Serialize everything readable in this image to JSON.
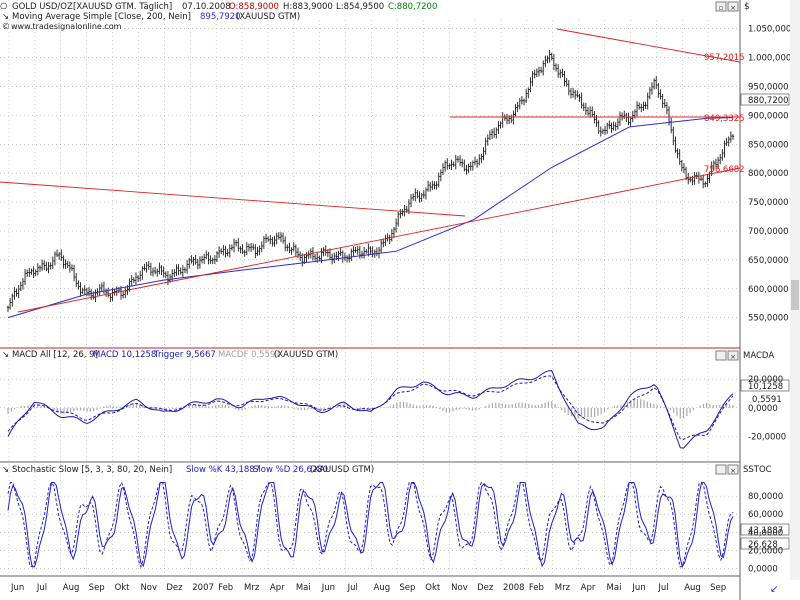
{
  "app": {
    "watermark": "www.tradesignalonline.com",
    "currency_symbol": "$"
  },
  "header": {
    "symbol_title": "GOLD USD/OZ",
    "instrument": "[XAUUSD GTM. Täglich]",
    "date": "07.10.2008",
    "open_label": "O:858,9000",
    "high_label": "H:883,9000",
    "low_label": "L:854,9500",
    "close_label": "C:880,7200",
    "ma_line": "Moving Average Simple [Close, 200, Nein]",
    "ma_value": "895,7920",
    "ma_suffix": "(XAUUSD GTM)"
  },
  "macd_header": {
    "name": "MACD All [12, 26, 9]",
    "macd_label": "MACD 10,1258",
    "trigger_label": "Trigger 9,5667",
    "macdf_label": "MACDF 0,5591",
    "suffix": "(XAUUSD GTM)",
    "axis_tag": "MACDA"
  },
  "stoch_header": {
    "name": "Stochastic Slow [5, 3, 3, 80, 20, Nein]",
    "k_label": "Slow %K 43,1887",
    "d_label": "Slow %D 26,6280",
    "suffix": "(XAUUSD GTM)",
    "axis_tag": "SSTOC"
  },
  "colors": {
    "price_bars": "#1a1a1a",
    "moving_average": "#2a2ad8",
    "trendline": "#e02020",
    "macd": "#1a1aa8",
    "histogram": "#a8a8a8",
    "stochastic": "#2020c8",
    "grid": "#a0a0a0"
  },
  "chart_data": [
    {
      "type": "line",
      "title": "GOLD USD/OZ",
      "ylim": [
        520,
        1065
      ],
      "y_ticks": [
        "1.050,0000",
        "1.000,0000",
        "950,0000",
        "900,0000",
        "850,0000",
        "800,0000",
        "750,0000",
        "700,0000",
        "650,0000",
        "600,0000",
        "550,0000"
      ],
      "last_value_label": "880,7200",
      "line_labels": [
        "957,2015",
        "849,3325",
        "756,6682"
      ],
      "series": [
        {
          "name": "XAUUSD GTM",
          "x": [
            "2006-06",
            "2006-07",
            "2006-08",
            "2006-09",
            "2006-10",
            "2006-11",
            "2006-12",
            "2007-01",
            "2007-02",
            "2007-03",
            "2007-04",
            "2007-05",
            "2007-06",
            "2007-07",
            "2007-08",
            "2007-09",
            "2007-10",
            "2007-11",
            "2007-12",
            "2008-01",
            "2008-02",
            "2008-03",
            "2008-04",
            "2008-05",
            "2008-06",
            "2008-07",
            "2008-08",
            "2008-09",
            "2008-10"
          ],
          "values": [
            565,
            640,
            650,
            598,
            585,
            625,
            630,
            635,
            665,
            665,
            685,
            670,
            650,
            665,
            655,
            715,
            770,
            810,
            820,
            880,
            940,
            1005,
            920,
            880,
            890,
            960,
            810,
            780,
            880
          ]
        },
        {
          "name": "Moving Average Simple [Close, 200, Nein]",
          "x": [
            "2006-06",
            "2006-09",
            "2006-12",
            "2007-03",
            "2007-06",
            "2007-09",
            "2007-12",
            "2008-03",
            "2008-06",
            "2008-09",
            "2008-10"
          ],
          "values": [
            550,
            590,
            615,
            632,
            648,
            665,
            720,
            810,
            880,
            895,
            896
          ]
        }
      ]
    },
    {
      "type": "line",
      "title": "MACD All [12, 26, 9]",
      "ylim": [
        -35,
        32
      ],
      "y_ticks": [
        "20,0000",
        "0,0000",
        "-20,0000"
      ],
      "last_value_labels": [
        "10,1258",
        "0,5591"
      ],
      "series": [
        {
          "name": "MACD",
          "x": [
            "2006-06",
            "2006-07",
            "2006-08",
            "2006-09",
            "2006-10",
            "2006-11",
            "2006-12",
            "2007-01",
            "2007-02",
            "2007-03",
            "2007-04",
            "2007-05",
            "2007-06",
            "2007-07",
            "2007-08",
            "2007-09",
            "2007-10",
            "2007-11",
            "2007-12",
            "2008-01",
            "2008-02",
            "2008-03",
            "2008-04",
            "2008-05",
            "2008-06",
            "2008-07",
            "2008-08",
            "2008-09",
            "2008-10"
          ],
          "values": [
            -20,
            5,
            -5,
            -10,
            -2,
            5,
            -4,
            2,
            6,
            1,
            8,
            5,
            -3,
            3,
            -4,
            12,
            18,
            10,
            8,
            15,
            20,
            25,
            -12,
            -15,
            8,
            18,
            -28,
            -15,
            10
          ]
        },
        {
          "name": "Trigger",
          "x": [
            "2006-06",
            "2006-07",
            "2006-08",
            "2006-09",
            "2006-10",
            "2006-11",
            "2006-12",
            "2007-01",
            "2007-02",
            "2007-03",
            "2007-04",
            "2007-05",
            "2007-06",
            "2007-07",
            "2007-08",
            "2007-09",
            "2007-10",
            "2007-11",
            "2007-12",
            "2008-01",
            "2008-02",
            "2008-03",
            "2008-04",
            "2008-05",
            "2008-06",
            "2008-07",
            "2008-08",
            "2008-09",
            "2008-10"
          ],
          "values": [
            -17,
            2,
            -2,
            -8,
            -3,
            3,
            -2,
            1,
            4,
            2,
            6,
            5,
            -1,
            1,
            -2,
            9,
            16,
            12,
            9,
            12,
            18,
            22,
            -5,
            -12,
            3,
            15,
            -22,
            -18,
            9
          ]
        }
      ]
    },
    {
      "type": "line",
      "title": "Stochastic Slow [5, 3, 3, 80, 20, Nein]",
      "ylim": [
        -6,
        100
      ],
      "y_ticks": [
        "80,0000",
        "60,0000",
        "40,0000",
        "20,0000",
        "0,0000"
      ],
      "last_value_labels": [
        "43,1887",
        "26,628"
      ],
      "series": [
        {
          "name": "Slow %K",
          "x": [
            "2006-06",
            "2006-07",
            "2006-08",
            "2006-09",
            "2006-10",
            "2006-11",
            "2006-12",
            "2007-01",
            "2007-02",
            "2007-03",
            "2007-04",
            "2007-05",
            "2007-06",
            "2007-07",
            "2007-08",
            "2007-09",
            "2007-10",
            "2007-11",
            "2007-12",
            "2008-01",
            "2008-02",
            "2008-03",
            "2008-04",
            "2008-05",
            "2008-06",
            "2008-07",
            "2008-08",
            "2008-09",
            "2008-10"
          ],
          "values": [
            85,
            15,
            90,
            20,
            80,
            25,
            85,
            30,
            88,
            20,
            90,
            30,
            80,
            25,
            85,
            90,
            70,
            20,
            80,
            85,
            75,
            15,
            80,
            20,
            85,
            88,
            15,
            85,
            43
          ]
        },
        {
          "name": "Slow %D",
          "x": [
            "2006-06",
            "2006-07",
            "2006-08",
            "2006-09",
            "2006-10",
            "2006-11",
            "2006-12",
            "2007-01",
            "2007-02",
            "2007-03",
            "2007-04",
            "2007-05",
            "2007-06",
            "2007-07",
            "2007-08",
            "2007-09",
            "2007-10",
            "2007-11",
            "2007-12",
            "2008-01",
            "2008-02",
            "2008-03",
            "2008-04",
            "2008-05",
            "2008-06",
            "2008-07",
            "2008-08",
            "2008-09",
            "2008-10"
          ],
          "values": [
            80,
            20,
            85,
            25,
            75,
            30,
            80,
            35,
            82,
            25,
            85,
            35,
            75,
            30,
            80,
            85,
            72,
            25,
            75,
            80,
            72,
            20,
            75,
            25,
            80,
            85,
            20,
            80,
            27
          ]
        }
      ]
    }
  ],
  "x_axis": {
    "months": [
      "Jun",
      "Jul",
      "Aug",
      "Sep",
      "Okt",
      "Nov",
      "Dez",
      "2007",
      "Feb",
      "Mrz",
      "Apr",
      "Mai",
      "Jun",
      "Jul",
      "Aug",
      "Sep",
      "Okt",
      "Nov",
      "Dez",
      "2008",
      "Feb",
      "Mrz",
      "Apr",
      "Mai",
      "Jun",
      "Jul",
      "Aug",
      "Sep"
    ]
  }
}
